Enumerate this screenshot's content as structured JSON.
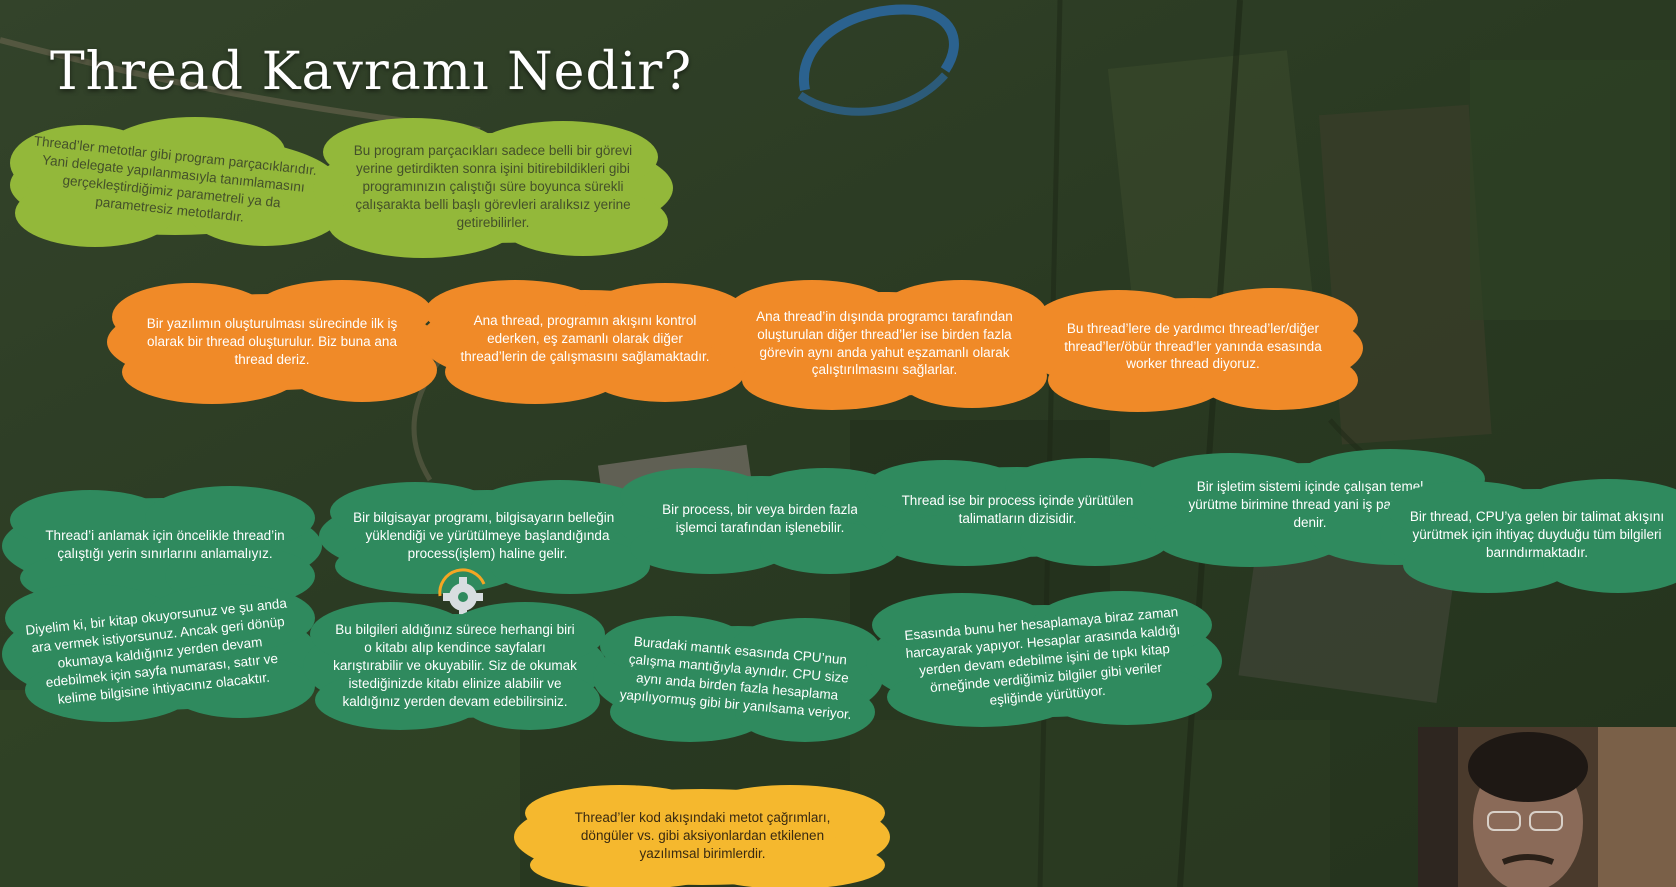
{
  "slide": {
    "title": "Thread Kavramı Nedir?",
    "clouds": {
      "c1": "Thread’ler metotlar gibi program parçacıklarıdır. Yani delegate yapılanmasıyla tanımlamasını gerçekleştirdiğimiz parametreli ya da parametresiz metotlardır.",
      "c2": "Bu program parçacıkları sadece belli bir görevi yerine getirdikten sonra işini bitirebildikleri gibi programınızın çalıştığı süre boyunca sürekli çalışarakta belli başlı görevleri aralıksız yerine getirebilirler.",
      "c3": "Bir yazılımın oluşturulması sürecinde ilk iş olarak bir thread oluşturulur. Biz buna ana thread deriz.",
      "c4": "Ana thread, programın akışını kontrol ederken, eş zamanlı olarak diğer thread’lerin de çalışmasını sağlamaktadır.",
      "c5": "Ana thread’in dışında programcı tarafından oluşturulan diğer thread’ler ise birden fazla görevin aynı anda yahut eşzamanlı olarak çalıştırılmasını sağlarlar.",
      "c6": "Bu thread’lere de yardımcı thread’ler/diğer thread’ler/öbür thread’ler yanında esasında worker thread diyoruz.",
      "c7": "Thread’i anlamak için öncelikle thread’in çalıştığı yerin sınırlarını anlamalıyız.",
      "c8": "Bir bilgisayar programı, bilgisayarın belleğine yüklendiği ve yürütülmeye başlandığında process(işlem) haline gelir.",
      "c9": "Bir process, bir veya birden fazla işlemci tarafından işlenebilir.",
      "c10": "Thread ise bir process içinde yürütülen talimatların dizisidir.",
      "c11": "Bir işletim sistemi içinde çalışan temel yürütme birimine thread yani iş parçacığı denir.",
      "c12": "Bir thread, CPU’ya gelen bir talimat akışını yürütmek için ihtiyaç duyduğu tüm bilgileri barındırmaktadır.",
      "c13": "Diyelim ki, bir kitap okuyorsunuz ve şu anda ara vermek istiyorsunuz. Ancak geri dönüp okumaya kaldığınız yerden devam edebilmek için sayfa numarası, satır ve kelime bilgisine ihtiyacınız olacaktır.",
      "c14": "Bu bilgileri aldığınız sürece herhangi biri o kitabı alıp kendince sayfaları karıştırabilir ve okuyabilir. Siz de okumak istediğinizde kitabı elinize alabilir ve kaldığınız yerden devam edebilirsiniz.",
      "c15": "Buradaki mantık esasında CPU’nun çalışma mantığıyla aynıdır. CPU size aynı anda birden fazla hesaplama yapılıyormuş gibi bir yanılsama veriyor.",
      "c16": "Esasında bunu her hesaplamaya biraz zaman harcayarak yapıyor. Hesaplar arasında kaldığı yerden devam edebilme işini de tıpkı kitap örneğinde verdiğimiz bilgiler gibi veriler eşliğinde yürütüyor.",
      "c17": "Thread’ler kod akışındaki metot çağrımları, döngüler vs. gibi aksiyonlardan etkilenen yazılımsal birimlerdir."
    }
  },
  "colors": {
    "green_cloud": "#93b83a",
    "orange_cloud": "#f08a28",
    "teal_cloud": "#2f8a5e",
    "yellow_cloud": "#f5b82e"
  }
}
